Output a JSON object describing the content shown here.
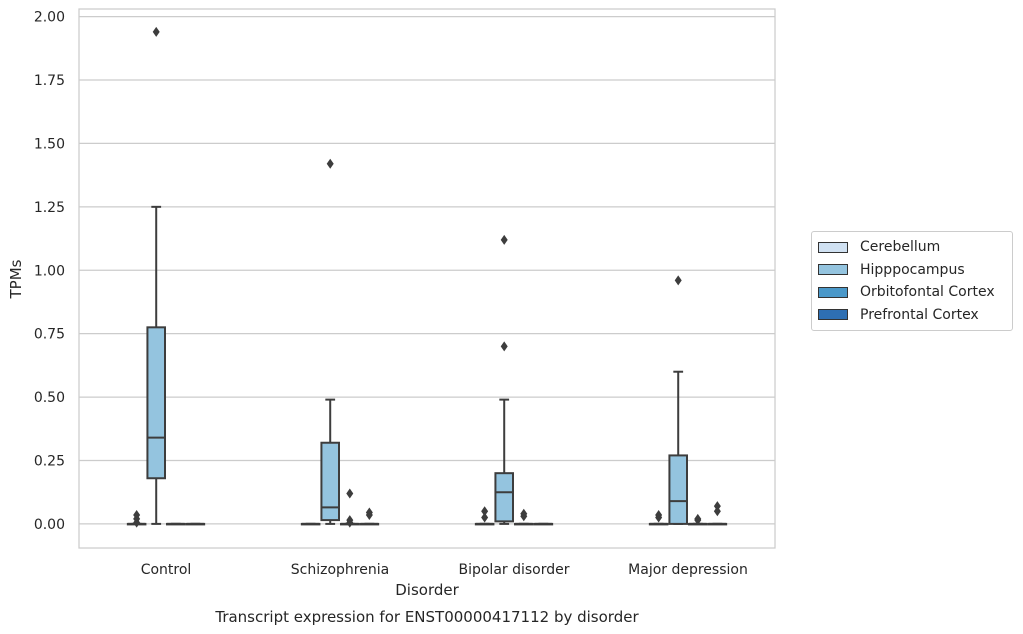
{
  "chart_data": {
    "type": "box",
    "title": "Transcript expression for ENST00000417112 by disorder",
    "xlabel": "Disorder",
    "ylabel": "TPMs",
    "categories": [
      "Control",
      "Schizophrenia",
      "Bipolar disorder",
      "Major depression"
    ],
    "ylim": [
      -0.095,
      2.03
    ],
    "yticks": [
      0.0,
      0.25,
      0.5,
      0.75,
      1.0,
      1.25,
      1.5,
      1.75,
      2.0
    ],
    "ytick_labels": [
      "0.00",
      "0.25",
      "0.50",
      "0.75",
      "1.00",
      "1.25",
      "1.50",
      "1.75",
      "2.00"
    ],
    "grid": true,
    "legend_position": "right",
    "series": [
      {
        "name": "Cerebellum",
        "color": "#d0e1f2",
        "boxes": [
          {
            "q1": 0,
            "median": 0,
            "q3": 0,
            "whisker_low": 0,
            "whisker_high": 0,
            "outliers": [
              0.035,
              0.02,
              0.005
            ]
          },
          {
            "q1": 0,
            "median": 0,
            "q3": 0,
            "whisker_low": 0,
            "whisker_high": 0,
            "outliers": []
          },
          {
            "q1": 0,
            "median": 0,
            "q3": 0,
            "whisker_low": 0,
            "whisker_high": 0,
            "outliers": [
              0.05,
              0.025
            ]
          },
          {
            "q1": 0,
            "median": 0,
            "q3": 0,
            "whisker_low": 0,
            "whisker_high": 0,
            "outliers": [
              0.035,
              0.025
            ]
          }
        ]
      },
      {
        "name": "Hipppocampus",
        "color": "#94c4df",
        "boxes": [
          {
            "q1": 0.18,
            "median": 0.34,
            "q3": 0.775,
            "whisker_low": 0,
            "whisker_high": 1.25,
            "outliers": [
              1.94
            ]
          },
          {
            "q1": 0.015,
            "median": 0.065,
            "q3": 0.32,
            "whisker_low": 0,
            "whisker_high": 0.49,
            "outliers": [
              1.42
            ]
          },
          {
            "q1": 0.01,
            "median": 0.125,
            "q3": 0.2,
            "whisker_low": 0,
            "whisker_high": 0.49,
            "outliers": [
              1.12,
              0.7
            ]
          },
          {
            "q1": 0,
            "median": 0.09,
            "q3": 0.27,
            "whisker_low": 0,
            "whisker_high": 0.6,
            "outliers": [
              0.96
            ]
          }
        ]
      },
      {
        "name": "Orbitofontal Cortex",
        "color": "#4a98c9",
        "boxes": [
          {
            "q1": 0,
            "median": 0,
            "q3": 0,
            "whisker_low": 0,
            "whisker_high": 0,
            "outliers": []
          },
          {
            "q1": 0,
            "median": 0,
            "q3": 0,
            "whisker_low": 0,
            "whisker_high": 0,
            "outliers": [
              0.12,
              0.015,
              0.005
            ]
          },
          {
            "q1": 0,
            "median": 0,
            "q3": 0,
            "whisker_low": 0,
            "whisker_high": 0,
            "outliers": [
              0.04,
              0.03
            ]
          },
          {
            "q1": 0,
            "median": 0,
            "q3": 0,
            "whisker_low": 0,
            "whisker_high": 0,
            "outliers": [
              0.02,
              0.015
            ]
          }
        ]
      },
      {
        "name": "Prefrontal Cortex",
        "color": "#2e6fb3",
        "boxes": [
          {
            "q1": 0,
            "median": 0,
            "q3": 0,
            "whisker_low": 0,
            "whisker_high": 0,
            "outliers": []
          },
          {
            "q1": 0,
            "median": 0,
            "q3": 0,
            "whisker_low": 0,
            "whisker_high": 0,
            "outliers": [
              0.045,
              0.035
            ]
          },
          {
            "q1": 0,
            "median": 0,
            "q3": 0,
            "whisker_low": 0,
            "whisker_high": 0,
            "outliers": []
          },
          {
            "q1": 0,
            "median": 0,
            "q3": 0,
            "whisker_low": 0,
            "whisker_high": 0,
            "outliers": [
              0.07,
              0.05
            ]
          }
        ]
      }
    ]
  }
}
